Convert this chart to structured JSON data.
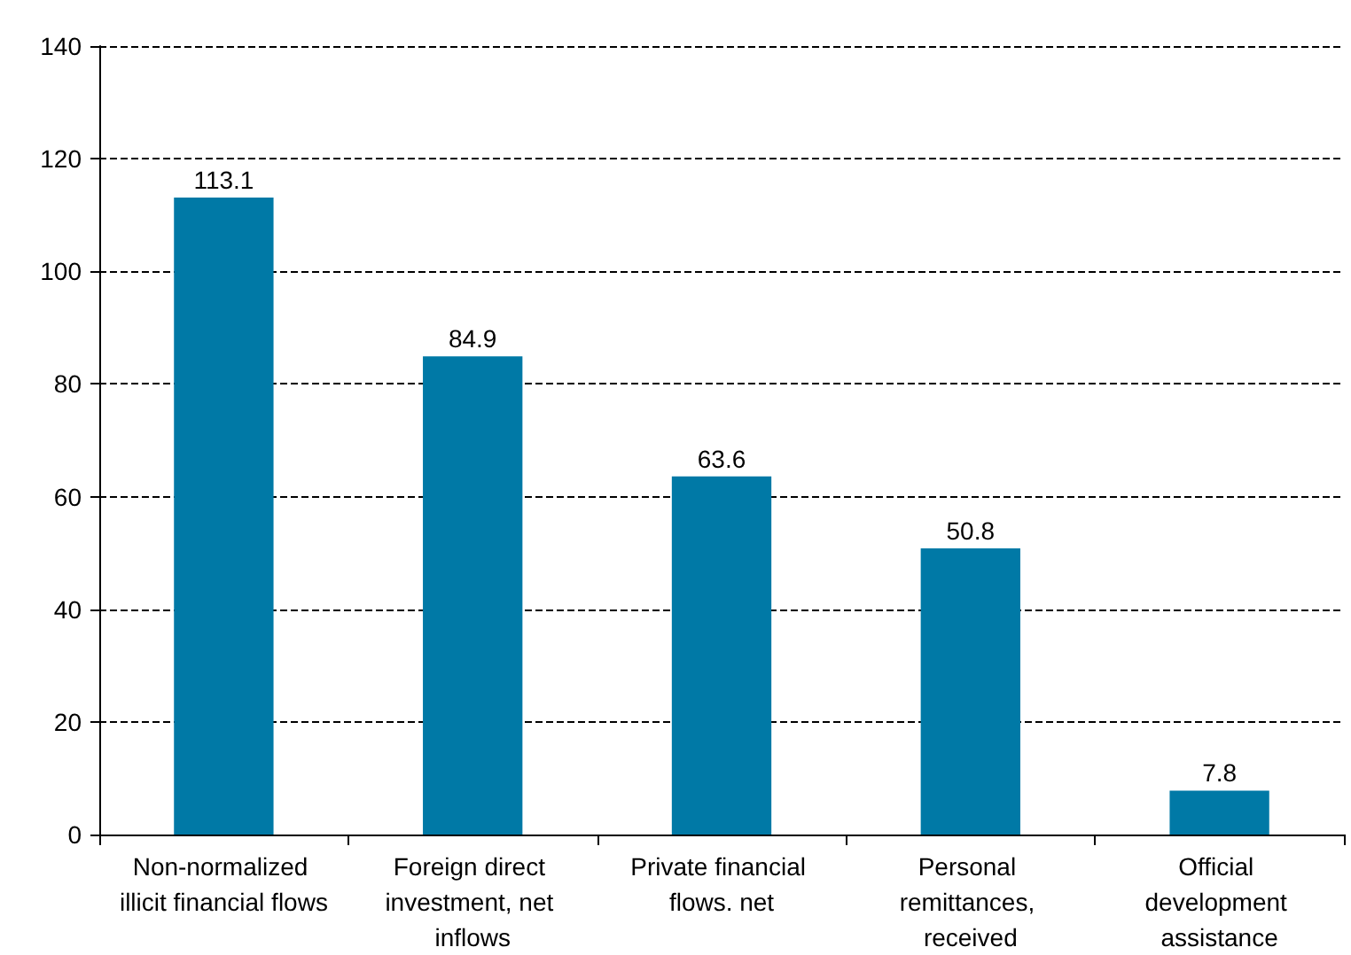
{
  "chart_data": {
    "type": "bar",
    "categories": [
      "Non-normalized illicit financial flows",
      "Foreign direct investment, net inflows",
      "Private financial flows. net",
      "Personal remittances, received",
      "Official development assistance"
    ],
    "values": [
      113.1,
      84.9,
      63.6,
      50.8,
      7.8
    ],
    "color": "#0079a6",
    "ylim": [
      0,
      140
    ],
    "yticks": [
      0,
      20,
      40,
      60,
      80,
      100,
      120,
      140
    ],
    "grid": "y",
    "data_labels": true
  }
}
